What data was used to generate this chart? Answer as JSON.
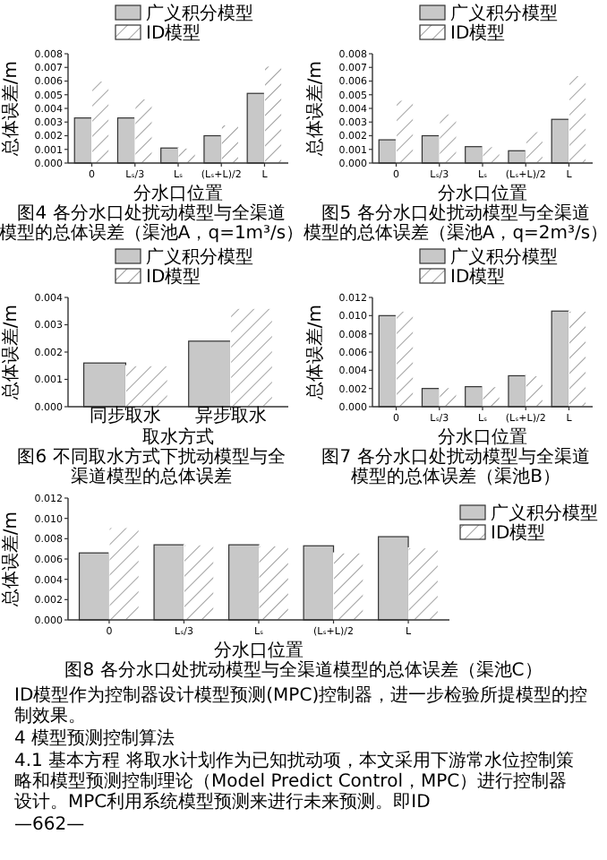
{
  "chart_data": [
    {
      "type": "bar",
      "categories": [
        "0",
        "Lₛ/3",
        "Lₛ",
        "(Lₛ+L)/2",
        "L"
      ],
      "xlabel": "分水口位置",
      "ylabel": "总体误差/m",
      "legend": "top",
      "series": [
        {
          "name": "广义积分模型",
          "color": "#c8c8c8",
          "values": [
            0.0033,
            0.0033,
            0.0011,
            0.002,
            0.0051
          ]
        },
        {
          "name": "ID模型",
          "color": "#ffffff",
          "values": [
            0.006,
            0.0047,
            0.0011,
            0.0028,
            0.0071
          ]
        }
      ],
      "ylim": [
        0,
        0.008
      ],
      "yticks": [
        {
          "value": 0,
          "label": "0.000"
        },
        {
          "value": 0.001,
          "label": "0.001"
        },
        {
          "value": 0.002,
          "label": "0.002"
        },
        {
          "value": 0.003,
          "label": "0.003"
        },
        {
          "value": 0.004,
          "label": "0.004"
        },
        {
          "value": 0.005,
          "label": "0.005"
        },
        {
          "value": 0.006,
          "label": "0.006"
        },
        {
          "value": 0.007,
          "label": "0.007"
        },
        {
          "value": 0.008,
          "label": "0.008"
        }
      ],
      "annotations": [
        "图4 各分水口处扰动模型与全渠道模型的总体误差（渠池A，q=1m³/s）"
      ]
    },
    {
      "type": "bar",
      "categories": [
        "0",
        "Lₛ/3",
        "Lₛ",
        "(Lₛ+L)/2",
        "L"
      ],
      "xlabel": "分水口位置",
      "ylabel": "总体误差/m",
      "legend": "top",
      "series": [
        {
          "name": "广义积分模型",
          "color": "#c8c8c8",
          "values": [
            0.0017,
            0.002,
            0.0012,
            0.0009,
            0.0032
          ]
        },
        {
          "name": "ID模型",
          "color": "#ffffff",
          "values": [
            0.0046,
            0.0036,
            0.0012,
            0.0023,
            0.0064
          ]
        }
      ],
      "ylim": [
        0,
        0.008
      ],
      "yticks": [
        {
          "value": 0,
          "label": "0.000"
        },
        {
          "value": 0.001,
          "label": "0.001"
        },
        {
          "value": 0.002,
          "label": "0.002"
        },
        {
          "value": 0.003,
          "label": "0.003"
        },
        {
          "value": 0.004,
          "label": "0.004"
        },
        {
          "value": 0.005,
          "label": "0.005"
        },
        {
          "value": 0.006,
          "label": "0.006"
        },
        {
          "value": 0.007,
          "label": "0.007"
        },
        {
          "value": 0.008,
          "label": "0.008"
        }
      ],
      "annotations": [
        "图5 各分水口处扰动模型与全渠道模型的总体误差（渠池A，q=2m³/s）"
      ]
    },
    {
      "type": "bar",
      "categories": [
        "同步取水",
        "异步取水"
      ],
      "xlabel": "取水方式",
      "ylabel": "总体误差/m",
      "legend": "top",
      "series": [
        {
          "name": "广义积分模型",
          "color": "#c8c8c8",
          "values": [
            0.0016,
            0.0024
          ]
        },
        {
          "name": "ID模型",
          "color": "#ffffff",
          "values": [
            0.0015,
            0.0036
          ]
        }
      ],
      "ylim": [
        0,
        0.004
      ],
      "yticks": [
        {
          "value": 0,
          "label": "0.000"
        },
        {
          "value": 0.001,
          "label": "0.001"
        },
        {
          "value": 0.002,
          "label": "0.002"
        },
        {
          "value": 0.003,
          "label": "0.003"
        },
        {
          "value": 0.004,
          "label": "0.004"
        }
      ],
      "annotations": [
        "图6 不同取水方式下扰动模型与全渠道模型的总体误差"
      ]
    },
    {
      "type": "bar",
      "categories": [
        "0",
        "Lₛ/3",
        "Lₛ",
        "(Lₛ+L)/2",
        "L"
      ],
      "xlabel": "分水口位置",
      "ylabel": "总体误差/m",
      "legend": "top",
      "series": [
        {
          "name": "广义积分模型",
          "color": "#c8c8c8",
          "values": [
            0.01,
            0.002,
            0.0022,
            0.0034,
            0.0105
          ]
        },
        {
          "name": "ID模型",
          "color": "#ffffff",
          "values": [
            0.0105,
            0.0021,
            0.0022,
            0.0034,
            0.0105
          ]
        }
      ],
      "ylim": [
        0,
        0.012
      ],
      "yticks": [
        {
          "value": 0,
          "label": "0.000"
        },
        {
          "value": 0.002,
          "label": "0.002"
        },
        {
          "value": 0.004,
          "label": "0.004"
        },
        {
          "value": 0.006,
          "label": "0.006"
        },
        {
          "value": 0.008,
          "label": "0.008"
        },
        {
          "value": 0.01,
          "label": "0.010"
        },
        {
          "value": 0.012,
          "label": "0.012"
        }
      ],
      "annotations": [
        "图7 各分水口处扰动模型与全渠道模型的总体误差（渠池B）"
      ]
    },
    {
      "type": "bar",
      "categories": [
        "0",
        "Lₛ/3",
        "Lₛ",
        "(Lₛ+L)/2",
        "L"
      ],
      "xlabel": "分水口位置",
      "ylabel": "总体误差/m",
      "legend": "right",
      "series": [
        {
          "name": "广义积分模型",
          "color": "#c8c8c8",
          "values": [
            0.0066,
            0.0074,
            0.0074,
            0.0073,
            0.0082
          ]
        },
        {
          "name": "ID模型",
          "color": "#ffffff",
          "values": [
            0.0091,
            0.0074,
            0.0073,
            0.0066,
            0.0071
          ]
        }
      ],
      "ylim": [
        0,
        0.012
      ],
      "yticks": [
        {
          "value": 0,
          "label": "0.000"
        },
        {
          "value": 0.002,
          "label": "0.002"
        },
        {
          "value": 0.004,
          "label": "0.004"
        },
        {
          "value": 0.006,
          "label": "0.006"
        },
        {
          "value": 0.008,
          "label": "0.008"
        },
        {
          "value": 0.01,
          "label": "0.010"
        },
        {
          "value": 0.012,
          "label": "0.012"
        }
      ],
      "annotations": [
        "图8 各分水口处扰动模型与全渠道模型的总体误差（渠池C）"
      ]
    },
    {
      "type": "other",
      "annotations": [
        "ID模型作为控制器设计模型预测(MPC)控制器，进一步检验所提模型的控制效果。",
        "4 模型预测控制算法",
        "4.1 基本方程 将取水计划作为已知扰动项，本文采用下游常水位控制策略和模型预测控制理论（Model Predict Control，MPC）进行控制器设计。MPC利用系统模型预测来进行未来预测。即ID",
        "—662—"
      ]
    }
  ]
}
